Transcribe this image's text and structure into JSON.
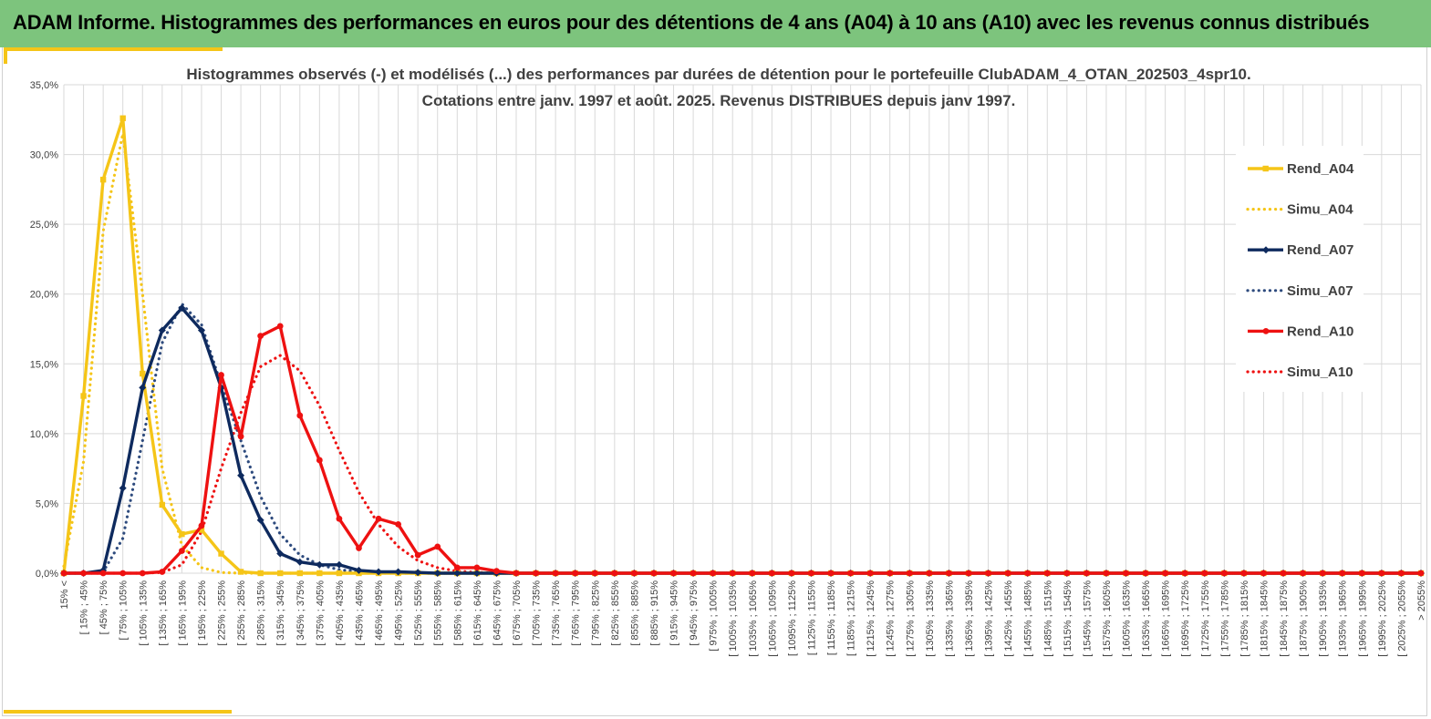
{
  "header": {
    "title": "ADAM Informe. Histogrammes des performances en euros pour des détentions de 4 ans (A04) à 10 ans (A10) avec les revenus connus distribués"
  },
  "colors": {
    "banner": "#7dc47d",
    "accent": "#f5c518",
    "A04": "#f5c518",
    "A07": "#0e2a5e",
    "A07_simu": "#2e4b7e",
    "A10": "#ee1111",
    "grid": "#d9d9d9"
  },
  "chart_data": {
    "type": "line",
    "title_line1": "Histogrammes observés (-) et modélisés (...) des performances par durées de détention pour le portefeuille ClubADAM_4_OTAN_202503_4spr10.",
    "title_line2": "Cotations entre janv. 1997 et août. 2025. Revenus DISTRIBUES depuis janv 1997.",
    "ylim": [
      0,
      35
    ],
    "yticks": [
      "0,0%",
      "5,0%",
      "10,0%",
      "15,0%",
      "20,0%",
      "25,0%",
      "30,0%",
      "35,0%"
    ],
    "grid": true,
    "legend_position": "right",
    "categories": [
      "15% <",
      "[ 15% ; 45%",
      "[ 45% ; 75%",
      "[ 75% ; 105%",
      "[ 105% ; 135%",
      "[ 135% ; 165%",
      "[ 165% ; 195%",
      "[ 195% ; 225%",
      "[ 225% ; 255%",
      "[ 255% ; 285%",
      "[ 285% ; 315%",
      "[ 315% ; 345%",
      "[ 345% ; 375%",
      "[ 375% ; 405%",
      "[ 405% ; 435%",
      "[ 435% ; 465%",
      "[ 465% ; 495%",
      "[ 495% ; 525%",
      "[ 525% ; 555%",
      "[ 555% ; 585%",
      "[ 585% ; 615%",
      "[ 615% ; 645%",
      "[ 645% ; 675%",
      "[ 675% ; 705%",
      "[ 705% ; 735%",
      "[ 735% ; 765%",
      "[ 765% ; 795%",
      "[ 795% ; 825%",
      "[ 825% ; 855%",
      "[ 855% ; 885%",
      "[ 885% ; 915%",
      "[ 915% ; 945%",
      "[ 945% ; 975%",
      "[ 975% ; 1005%",
      "[ 1005% ; 1035%",
      "[ 1035% ; 1065%",
      "[ 1065% ; 1095%",
      "[ 1095% ; 1125%",
      "[ 1125% ; 1155%",
      "[ 1155% ; 1185%",
      "[ 1185% ; 1215%",
      "[ 1215% ; 1245%",
      "[ 1245% ; 1275%",
      "[ 1275% ; 1305%",
      "[ 1305% ; 1335%",
      "[ 1335% ; 1365%",
      "[ 1365% ; 1395%",
      "[ 1395% ; 1425%",
      "[ 1425% ; 1455%",
      "[ 1455% ; 1485%",
      "[ 1485% ; 1515%",
      "[ 1515% ; 1545%",
      "[ 1545% ; 1575%",
      "[ 1575% ; 1605%",
      "[ 1605% ; 1635%",
      "[ 1635% ; 1665%",
      "[ 1665% ; 1695%",
      "[ 1695% ; 1725%",
      "[ 1725% ; 1755%",
      "[ 1755% ; 1785%",
      "[ 1785% ; 1815%",
      "[ 1815% ; 1845%",
      "[ 1845% ; 1875%",
      "[ 1875% ; 1905%",
      "[ 1905% ; 1935%",
      "[ 1935% ; 1965%",
      "[ 1965% ; 1995%",
      "[ 1995% ; 2025%",
      "[ 2025% ; 2055%",
      "> 2055%"
    ],
    "series": [
      {
        "name": "Rend_A04",
        "style": "solid",
        "marker": "square",
        "color": "#f5c518",
        "values": [
          0,
          12.7,
          28.2,
          32.6,
          14.3,
          4.9,
          2.8,
          3.1,
          1.4,
          0.1,
          0,
          0,
          0,
          0,
          0,
          0,
          0,
          0,
          0,
          0,
          0,
          0,
          0,
          0,
          0,
          0,
          0,
          0,
          0,
          0,
          0,
          0,
          0,
          0,
          0,
          0,
          0,
          0,
          0,
          0,
          0,
          0,
          0,
          0,
          0,
          0,
          0,
          0,
          0,
          0,
          0,
          0,
          0,
          0,
          0,
          0,
          0,
          0,
          0,
          0,
          0,
          0,
          0,
          0,
          0,
          0,
          0,
          0,
          0,
          0
        ]
      },
      {
        "name": "Simu_A04",
        "style": "dotted",
        "color": "#f5c518",
        "values": [
          0.5,
          8.0,
          24.5,
          31.5,
          20.0,
          7.5,
          2.0,
          0.4,
          0.05,
          0,
          0,
          0,
          0,
          0,
          0,
          0,
          0,
          0,
          0,
          0,
          0,
          0,
          0,
          0,
          0,
          0,
          0,
          0,
          0,
          0,
          0,
          0,
          0,
          0,
          0,
          0,
          0,
          0,
          0,
          0,
          0,
          0,
          0,
          0,
          0,
          0,
          0,
          0,
          0,
          0,
          0,
          0,
          0,
          0,
          0,
          0,
          0,
          0,
          0,
          0,
          0,
          0,
          0,
          0,
          0,
          0,
          0,
          0,
          0,
          0
        ]
      },
      {
        "name": "Rend_A07",
        "style": "solid",
        "marker": "diamond",
        "color": "#0e2a5e",
        "values": [
          0,
          0,
          0.2,
          6.1,
          13.3,
          17.4,
          19.0,
          17.4,
          13.3,
          7.0,
          3.8,
          1.4,
          0.8,
          0.6,
          0.6,
          0.2,
          0.1,
          0.1,
          0.05,
          0,
          0,
          0,
          0,
          0,
          0,
          0,
          0,
          0,
          0,
          0,
          0,
          0,
          0,
          0,
          0,
          0,
          0,
          0,
          0,
          0,
          0,
          0,
          0,
          0,
          0,
          0,
          0,
          0,
          0,
          0,
          0,
          0,
          0,
          0,
          0,
          0,
          0,
          0,
          0,
          0,
          0,
          0,
          0,
          0,
          0,
          0,
          0,
          0,
          0,
          0
        ]
      },
      {
        "name": "Simu_A07",
        "style": "dotted",
        "color": "#2e4b7e",
        "values": [
          0,
          0,
          0.1,
          2.5,
          9.5,
          16.5,
          19.3,
          17.8,
          13.5,
          9.5,
          5.5,
          2.8,
          1.3,
          0.6,
          0.25,
          0.1,
          0.05,
          0,
          0,
          0,
          0,
          0,
          0,
          0,
          0,
          0,
          0,
          0,
          0,
          0,
          0,
          0,
          0,
          0,
          0,
          0,
          0,
          0,
          0,
          0,
          0,
          0,
          0,
          0,
          0,
          0,
          0,
          0,
          0,
          0,
          0,
          0,
          0,
          0,
          0,
          0,
          0,
          0,
          0,
          0,
          0,
          0,
          0,
          0,
          0,
          0,
          0,
          0,
          0,
          0
        ]
      },
      {
        "name": "Rend_A10",
        "style": "solid",
        "marker": "circle",
        "color": "#ee1111",
        "values": [
          0,
          0,
          0,
          0,
          0,
          0.1,
          1.6,
          3.4,
          14.2,
          9.8,
          17.0,
          17.7,
          11.3,
          8.1,
          3.9,
          1.8,
          3.9,
          3.5,
          1.3,
          1.9,
          0.4,
          0.4,
          0.15,
          0,
          0,
          0,
          0,
          0,
          0,
          0,
          0,
          0,
          0,
          0,
          0,
          0,
          0,
          0,
          0,
          0,
          0,
          0,
          0,
          0,
          0,
          0,
          0,
          0,
          0,
          0,
          0,
          0,
          0,
          0,
          0,
          0,
          0,
          0,
          0,
          0,
          0,
          0,
          0,
          0,
          0,
          0,
          0,
          0,
          0,
          0
        ]
      },
      {
        "name": "Simu_A10",
        "style": "dotted",
        "color": "#ee1111",
        "values": [
          0,
          0,
          0,
          0,
          0,
          0.05,
          0.6,
          3.0,
          7.5,
          11.5,
          14.8,
          15.6,
          14.5,
          12.0,
          8.8,
          5.8,
          3.5,
          1.9,
          0.9,
          0.4,
          0.15,
          0.05,
          0,
          0,
          0,
          0,
          0,
          0,
          0,
          0,
          0,
          0,
          0,
          0,
          0,
          0,
          0,
          0,
          0,
          0,
          0,
          0,
          0,
          0,
          0,
          0,
          0,
          0,
          0,
          0,
          0,
          0,
          0,
          0,
          0,
          0,
          0,
          0,
          0,
          0,
          0,
          0,
          0,
          0,
          0,
          0,
          0,
          0,
          0,
          0
        ]
      }
    ]
  }
}
